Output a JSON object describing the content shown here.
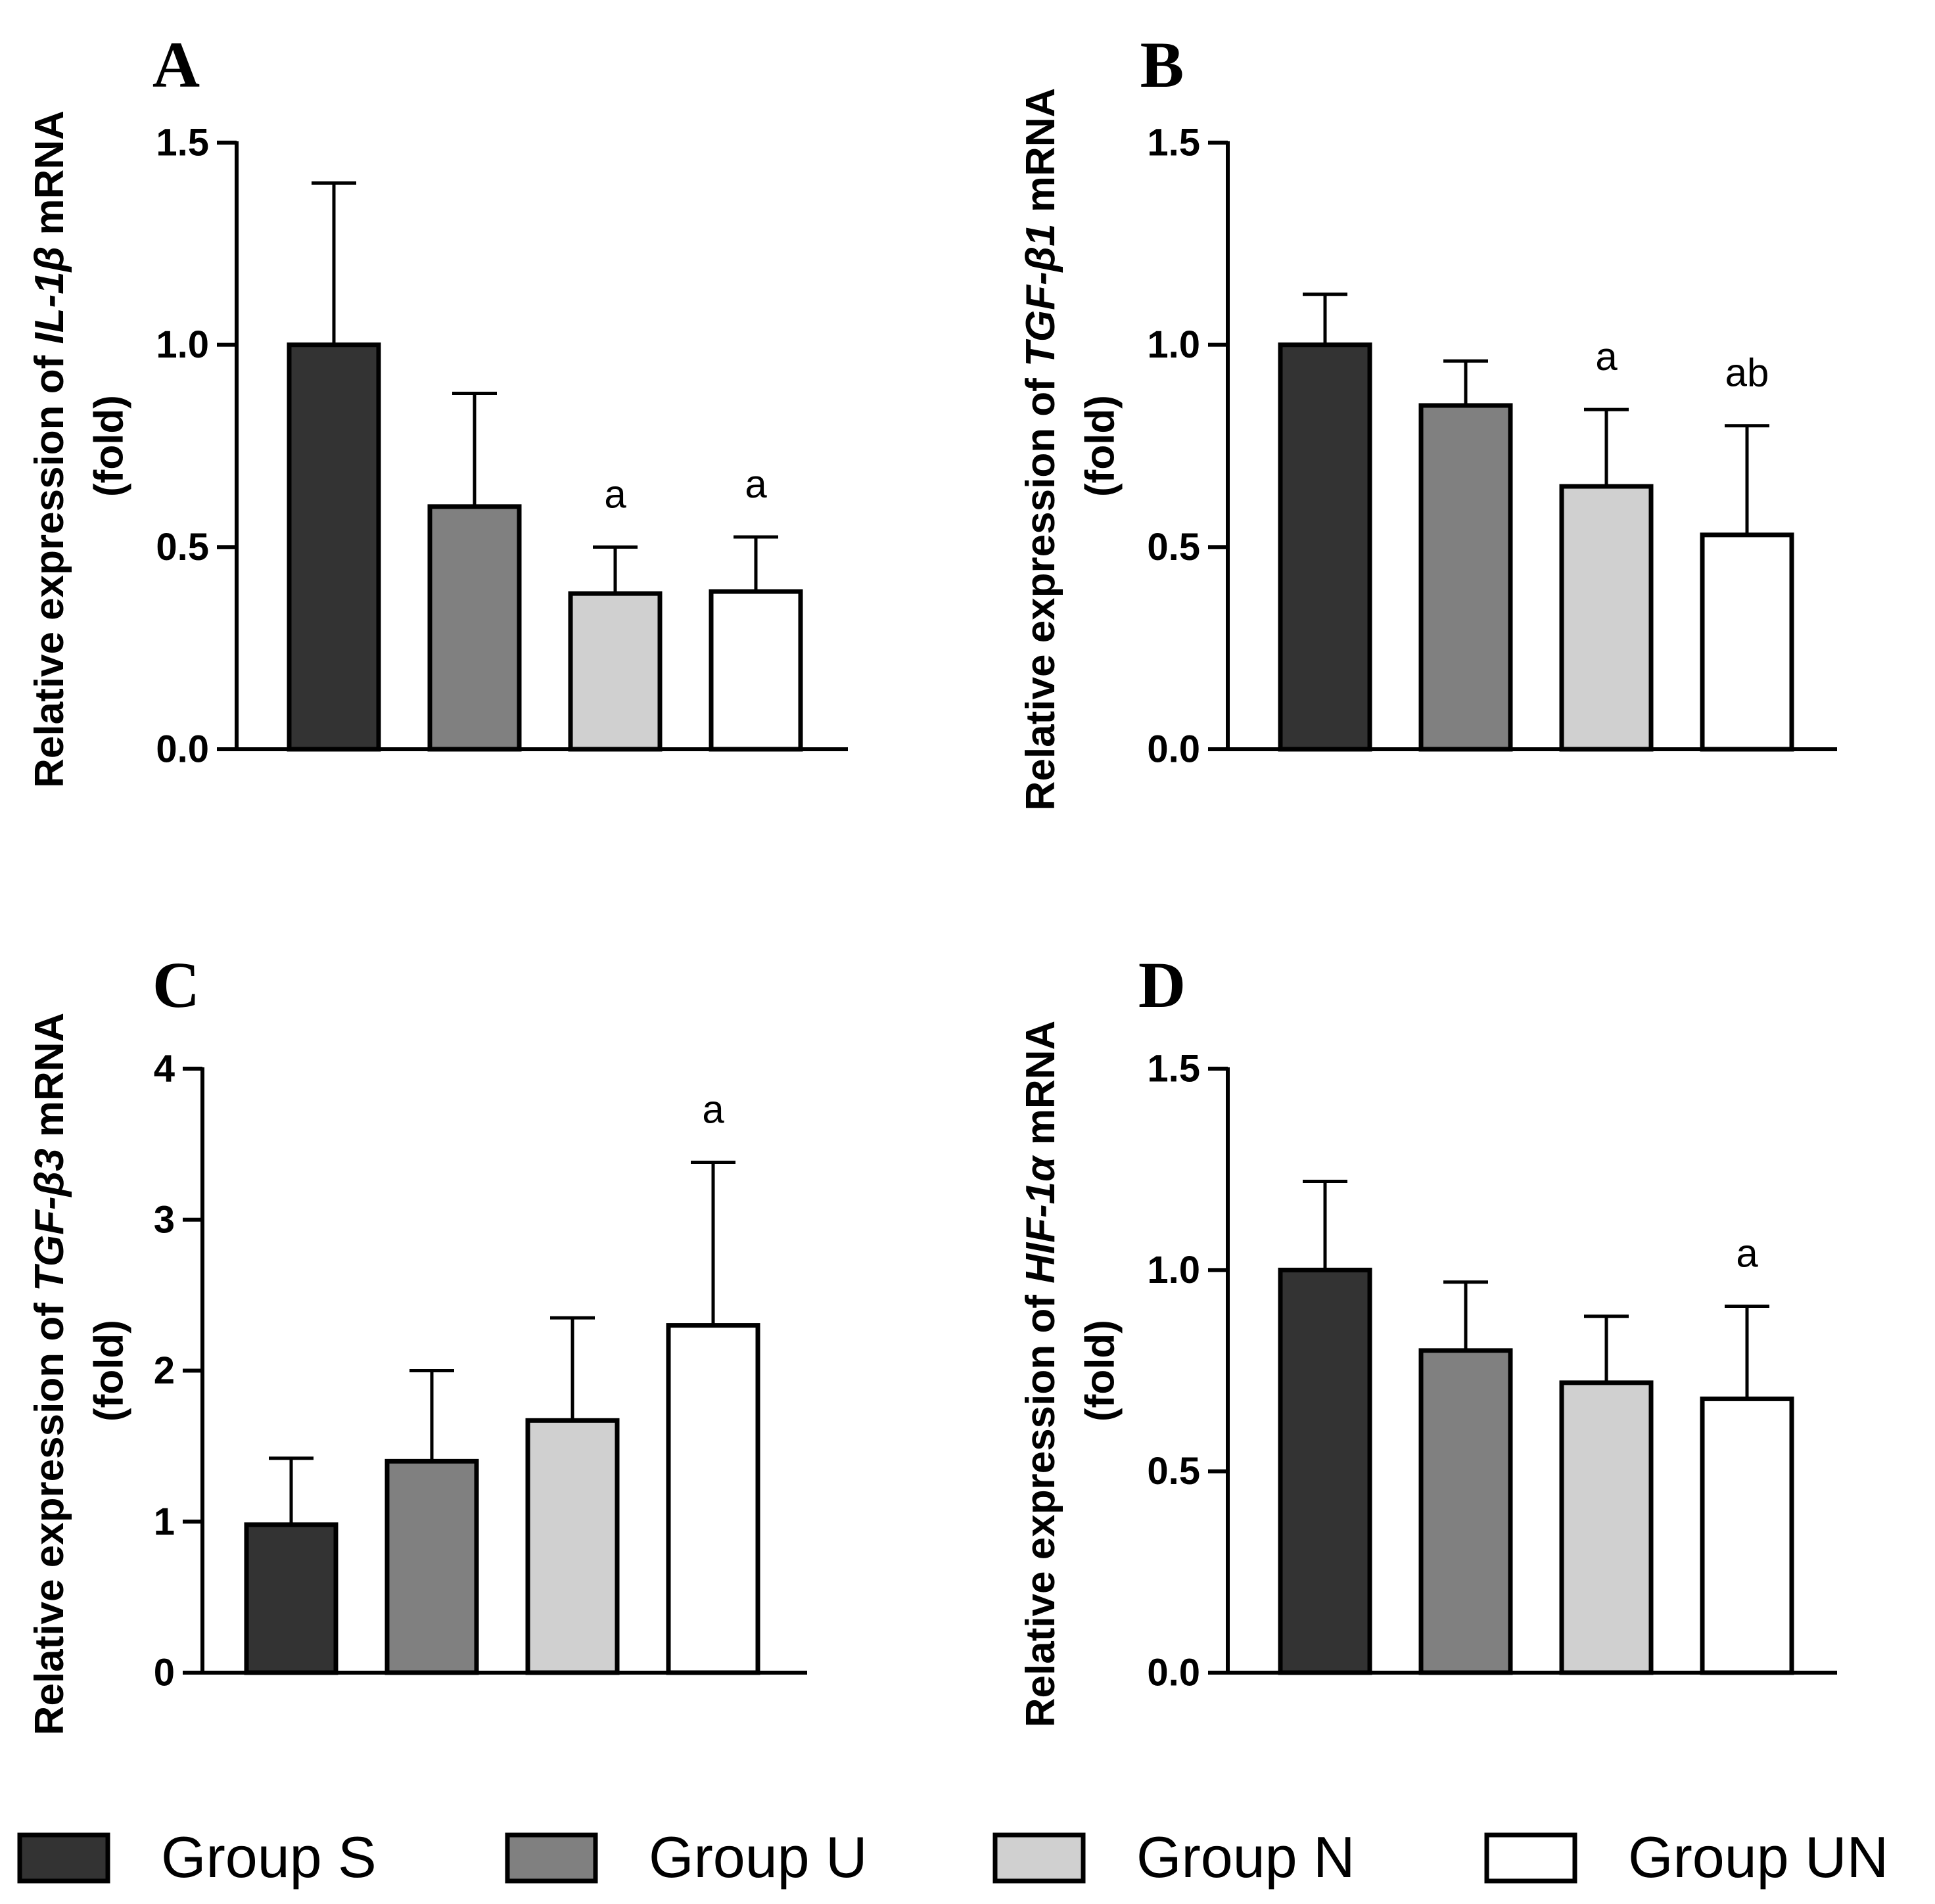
{
  "chart_data": [
    {
      "type": "bar",
      "panel": "A",
      "ylabel_pre": "Relative expression of ",
      "ylabel_gene": "IL-1β",
      "ylabel_post": " mRNA",
      "ylabel_line2": "(fold)",
      "ylim": [
        0,
        1.5
      ],
      "yticks": [
        "0.0",
        "0.5",
        "1.0",
        "1.5"
      ],
      "categories": [
        "Group S",
        "Group U",
        "Group N",
        "Group UN"
      ],
      "values": [
        1.0,
        0.6,
        0.385,
        0.39
      ],
      "errors": [
        0.4,
        0.28,
        0.115,
        0.135
      ],
      "significance": [
        "",
        "",
        "a",
        "a"
      ]
    },
    {
      "type": "bar",
      "panel": "B",
      "ylabel_pre": "Relative expression of ",
      "ylabel_gene": "TGF-β1",
      "ylabel_post": " mRNA",
      "ylabel_line2": "(fold)",
      "ylim": [
        0,
        1.5
      ],
      "yticks": [
        "0.0",
        "0.5",
        "1.0",
        "1.5"
      ],
      "categories": [
        "Group S",
        "Group U",
        "Group N",
        "Group UN"
      ],
      "values": [
        1.0,
        0.85,
        0.65,
        0.53
      ],
      "errors": [
        0.125,
        0.11,
        0.19,
        0.27
      ],
      "significance": [
        "",
        "",
        "a",
        "ab"
      ]
    },
    {
      "type": "bar",
      "panel": "C",
      "ylabel_pre": "Relative expression of ",
      "ylabel_gene": "TGF-β3",
      "ylabel_post": " mRNA",
      "ylabel_line2": "(fold)",
      "ylim": [
        0,
        4
      ],
      "yticks": [
        "0",
        "1",
        "2",
        "3",
        "4"
      ],
      "categories": [
        "Group S",
        "Group U",
        "Group N",
        "Group UN"
      ],
      "values": [
        0.98,
        1.4,
        1.67,
        2.3
      ],
      "errors": [
        0.44,
        0.6,
        0.68,
        1.08
      ],
      "significance": [
        "",
        "",
        "",
        "a"
      ]
    },
    {
      "type": "bar",
      "panel": "D",
      "ylabel_pre": "Relative expression of ",
      "ylabel_gene": "HIF-1α",
      "ylabel_post": " mRNA",
      "ylabel_line2": "(fold)",
      "ylim": [
        0,
        1.5
      ],
      "yticks": [
        "0.0",
        "0.5",
        "1.0",
        "1.5"
      ],
      "categories": [
        "Group S",
        "Group U",
        "Group N",
        "Group UN"
      ],
      "values": [
        1.0,
        0.8,
        0.72,
        0.68
      ],
      "errors": [
        0.22,
        0.17,
        0.165,
        0.23
      ],
      "significance": [
        "",
        "",
        "",
        "a"
      ]
    }
  ],
  "legend": {
    "entries": [
      {
        "label": "Group S",
        "color": "#333333"
      },
      {
        "label": "Group U",
        "color": "#808080"
      },
      {
        "label": "Group N",
        "color": "#d0d0d0"
      },
      {
        "label": "Group UN",
        "color": "#ffffff"
      }
    ]
  },
  "colors": {
    "axis": "#000000",
    "bar_stroke": "#000000"
  }
}
